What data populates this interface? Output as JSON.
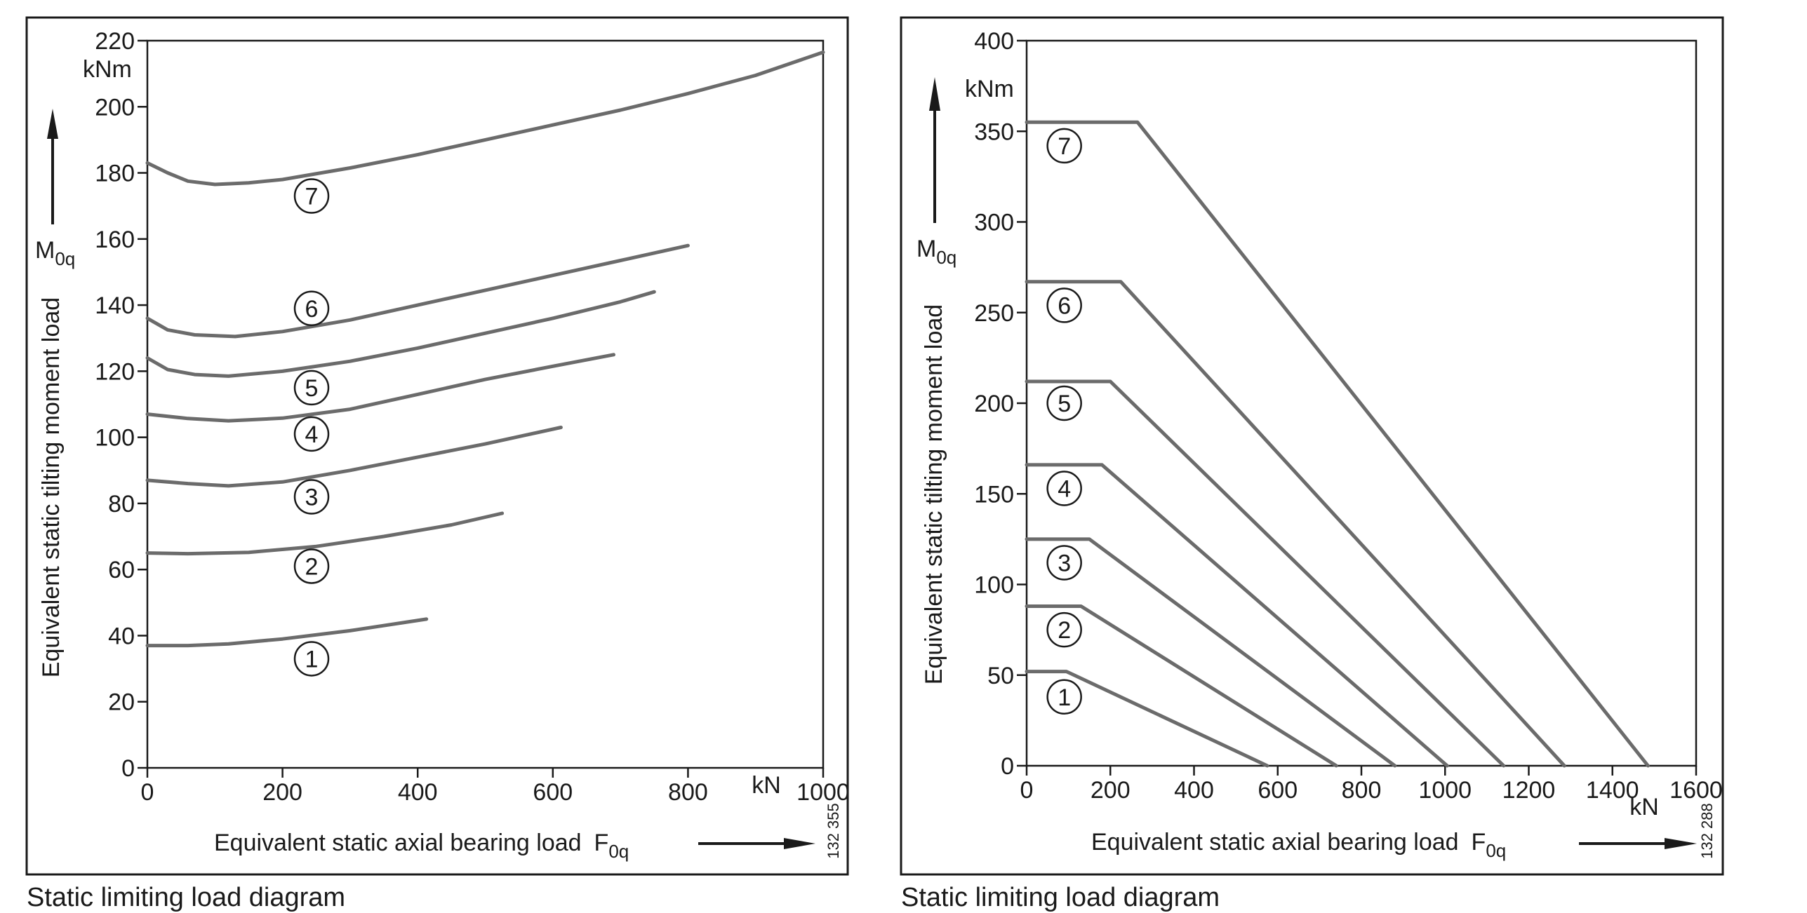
{
  "chart_data": [
    {
      "type": "line",
      "title": "",
      "caption": "Static limiting load diagram",
      "xlabel": "Equivalent static axial bearing load",
      "xlabel_symbol": "F",
      "xlabel_subscript": "0q",
      "x_unit": "kN",
      "ylabel": "Equivalent static tilting moment load",
      "ylabel_symbol": "M",
      "ylabel_subscript": "0q",
      "y_unit": "kNm",
      "xlim": [
        0,
        1000
      ],
      "ylim": [
        0,
        220
      ],
      "x_ticks": [
        0,
        200,
        400,
        600,
        800,
        1000
      ],
      "y_ticks": [
        0,
        20,
        40,
        60,
        80,
        100,
        120,
        140,
        160,
        180,
        200,
        220
      ],
      "grid": false,
      "legend": "none",
      "image_code": "132 355",
      "series": [
        {
          "name": "1",
          "label_at": [
            243,
            33
          ],
          "x": [
            0,
            60,
            120,
            200,
            300,
            413
          ],
          "y": [
            37,
            37,
            37.5,
            39,
            41.5,
            45
          ]
        },
        {
          "name": "2",
          "label_at": [
            243,
            61
          ],
          "x": [
            0,
            60,
            150,
            250,
            350,
            450,
            525
          ],
          "y": [
            65,
            64.8,
            65.2,
            67,
            70,
            73.5,
            77
          ]
        },
        {
          "name": "3",
          "label_at": [
            243,
            82
          ],
          "x": [
            0,
            60,
            120,
            200,
            300,
            400,
            500,
            612
          ],
          "y": [
            87,
            86,
            85.3,
            86.5,
            90,
            94,
            98,
            103
          ]
        },
        {
          "name": "4",
          "label_at": [
            243,
            101
          ],
          "x": [
            0,
            60,
            120,
            200,
            300,
            400,
            500,
            600,
            690
          ],
          "y": [
            107,
            105.7,
            105,
            105.8,
            108.5,
            113,
            117.5,
            121.5,
            125
          ]
        },
        {
          "name": "5",
          "label_at": [
            243,
            115
          ],
          "x": [
            0,
            30,
            70,
            120,
            200,
            300,
            400,
            500,
            600,
            700,
            750
          ],
          "y": [
            124,
            120.5,
            119,
            118.5,
            120,
            123,
            127,
            131.5,
            136,
            141,
            144
          ]
        },
        {
          "name": "6",
          "label_at": [
            243,
            139
          ],
          "x": [
            0,
            30,
            70,
            130,
            200,
            300,
            400,
            500,
            600,
            700,
            800
          ],
          "y": [
            136,
            132.5,
            131,
            130.5,
            132,
            135.5,
            140,
            144.5,
            149,
            153.5,
            158
          ]
        },
        {
          "name": "7",
          "label_at": [
            243,
            173
          ],
          "x": [
            0,
            30,
            60,
            100,
            150,
            200,
            300,
            400,
            500,
            600,
            700,
            800,
            900,
            1000
          ],
          "y": [
            183,
            180,
            177.5,
            176.5,
            177,
            178,
            181.5,
            185.5,
            190,
            194.5,
            199,
            204,
            209.5,
            216.5
          ]
        }
      ]
    },
    {
      "type": "line",
      "title": "",
      "caption": "Static limiting load diagram",
      "xlabel": "Equivalent static axial bearing load",
      "xlabel_symbol": "F",
      "xlabel_subscript": "0q",
      "x_unit": "kN",
      "ylabel": "Equivalent static tilting moment load",
      "ylabel_symbol": "M",
      "ylabel_subscript": "0q",
      "y_unit": "kNm",
      "xlim": [
        0,
        1600
      ],
      "ylim": [
        0,
        400
      ],
      "x_ticks": [
        0,
        200,
        400,
        600,
        800,
        1000,
        1200,
        1400,
        1600
      ],
      "y_ticks": [
        0,
        50,
        100,
        150,
        200,
        250,
        300,
        350,
        400
      ],
      "grid": false,
      "legend": "none",
      "image_code": "132 288",
      "series": [
        {
          "name": "1",
          "label_at": [
            90,
            38
          ],
          "x": [
            0,
            95,
            575
          ],
          "y": [
            52,
            52,
            0
          ]
        },
        {
          "name": "2",
          "label_at": [
            90,
            75
          ],
          "x": [
            0,
            130,
            740
          ],
          "y": [
            88,
            88,
            0
          ]
        },
        {
          "name": "3",
          "label_at": [
            90,
            112
          ],
          "x": [
            0,
            150,
            880
          ],
          "y": [
            125,
            125,
            0
          ]
        },
        {
          "name": "4",
          "label_at": [
            90,
            153
          ],
          "x": [
            0,
            180,
            1005
          ],
          "y": [
            166,
            166,
            0
          ]
        },
        {
          "name": "5",
          "label_at": [
            90,
            200
          ],
          "x": [
            0,
            200,
            1140
          ],
          "y": [
            212,
            212,
            0
          ]
        },
        {
          "name": "6",
          "label_at": [
            90,
            254
          ],
          "x": [
            0,
            225,
            1285
          ],
          "y": [
            267,
            267,
            0
          ]
        },
        {
          "name": "7",
          "label_at": [
            90,
            342
          ],
          "x": [
            0,
            265,
            1485
          ],
          "y": [
            355,
            355,
            0
          ]
        }
      ]
    }
  ]
}
